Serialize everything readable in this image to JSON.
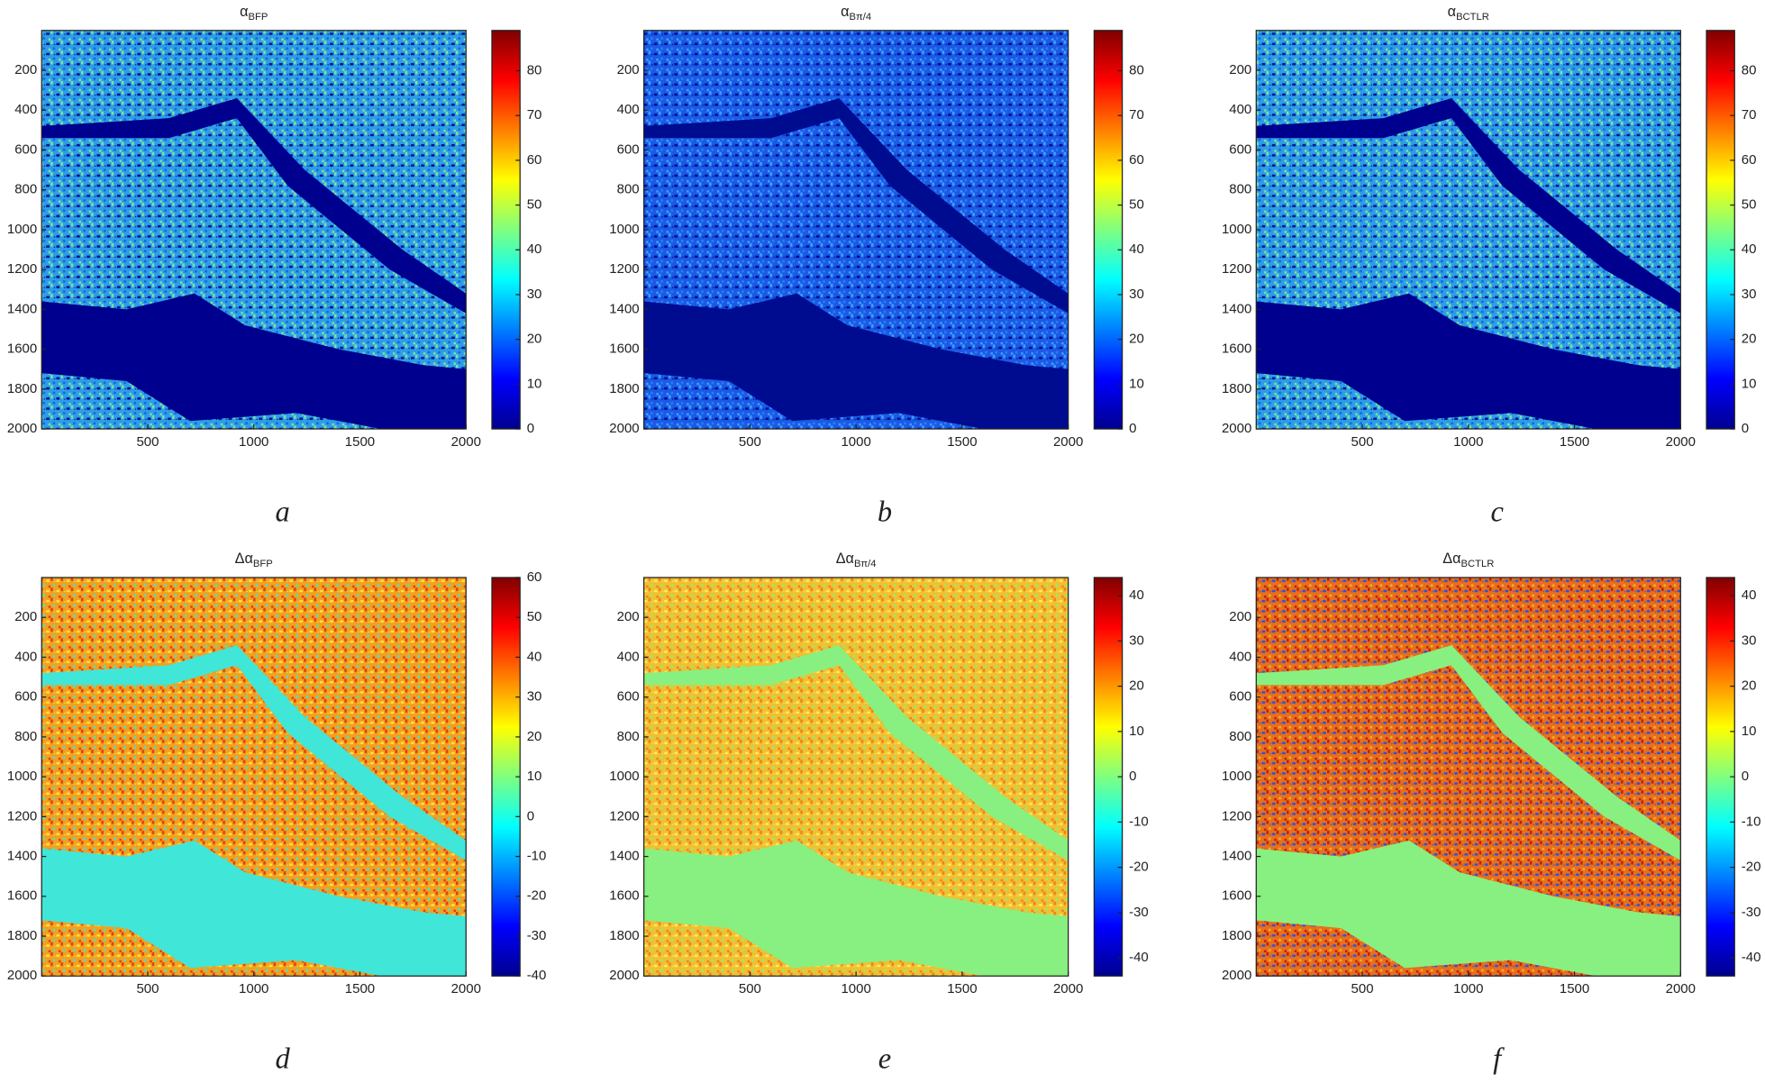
{
  "chart_data": [
    {
      "type": "image",
      "title": "α",
      "title_subscript": "BFP",
      "panel_label": "a",
      "xlim": [
        0,
        2000
      ],
      "xticks": [
        500,
        1000,
        1500,
        2000
      ],
      "ylim": [
        0,
        2000
      ],
      "yticks": [
        200,
        400,
        600,
        800,
        1000,
        1200,
        1400,
        1600,
        1800,
        2000
      ],
      "y_reversed": true,
      "colormap": "jet",
      "clim": [
        0,
        89
      ],
      "cticks": [
        0,
        10,
        20,
        30,
        40,
        50,
        60,
        70,
        80
      ]
    },
    {
      "type": "image",
      "title": "α",
      "title_subscript": "Bπ/4",
      "panel_label": "b",
      "xlim": [
        0,
        2000
      ],
      "xticks": [
        500,
        1000,
        1500,
        2000
      ],
      "ylim": [
        0,
        2000
      ],
      "yticks": [
        200,
        400,
        600,
        800,
        1000,
        1200,
        1400,
        1600,
        1800,
        2000
      ],
      "y_reversed": true,
      "colormap": "jet",
      "clim": [
        0,
        89
      ],
      "cticks": [
        0,
        10,
        20,
        30,
        40,
        50,
        60,
        70,
        80
      ]
    },
    {
      "type": "image",
      "title": "α",
      "title_subscript": "BCTLR",
      "panel_label": "c",
      "xlim": [
        0,
        2000
      ],
      "xticks": [
        500,
        1000,
        1500,
        2000
      ],
      "ylim": [
        0,
        2000
      ],
      "yticks": [
        200,
        400,
        600,
        800,
        1000,
        1200,
        1400,
        1600,
        1800,
        2000
      ],
      "y_reversed": true,
      "colormap": "jet",
      "clim": [
        0,
        89
      ],
      "cticks": [
        0,
        10,
        20,
        30,
        40,
        50,
        60,
        70,
        80
      ]
    },
    {
      "type": "image",
      "title": "Δα",
      "title_subscript": "BFP",
      "panel_label": "d",
      "xlim": [
        0,
        2000
      ],
      "xticks": [
        500,
        1000,
        1500,
        2000
      ],
      "ylim": [
        0,
        2000
      ],
      "yticks": [
        200,
        400,
        600,
        800,
        1000,
        1200,
        1400,
        1600,
        1800,
        2000
      ],
      "y_reversed": true,
      "colormap": "jet",
      "clim": [
        -40,
        60
      ],
      "cticks": [
        -40,
        -30,
        -20,
        -10,
        0,
        10,
        20,
        30,
        40,
        50,
        60
      ]
    },
    {
      "type": "image",
      "title": "Δα",
      "title_subscript": "Bπ/4",
      "panel_label": "e",
      "xlim": [
        0,
        2000
      ],
      "xticks": [
        500,
        1000,
        1500,
        2000
      ],
      "ylim": [
        0,
        2000
      ],
      "yticks": [
        200,
        400,
        600,
        800,
        1000,
        1200,
        1400,
        1600,
        1800,
        2000
      ],
      "y_reversed": true,
      "colormap": "jet",
      "clim": [
        -44,
        44
      ],
      "cticks": [
        -40,
        -30,
        -20,
        -10,
        0,
        10,
        20,
        30,
        40
      ]
    },
    {
      "type": "image",
      "title": "Δα",
      "title_subscript": "BCTLR",
      "panel_label": "f",
      "xlim": [
        0,
        2000
      ],
      "xticks": [
        500,
        1000,
        1500,
        2000
      ],
      "ylim": [
        0,
        2000
      ],
      "yticks": [
        200,
        400,
        600,
        800,
        1000,
        1200,
        1400,
        1600,
        1800,
        2000
      ],
      "y_reversed": true,
      "colormap": "jet",
      "clim": [
        -44,
        44
      ],
      "cticks": [
        -40,
        -30,
        -20,
        -10,
        0,
        10,
        20,
        30,
        40
      ]
    }
  ]
}
